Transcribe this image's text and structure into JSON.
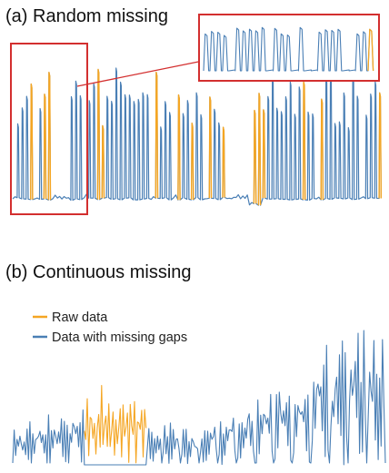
{
  "panels": {
    "a": {
      "title": "(a) Random missing"
    },
    "b": {
      "title": "(b) Continuous missing"
    }
  },
  "legend": {
    "raw_label": "Raw data",
    "gaps_label": "Data with missing gaps"
  },
  "colors": {
    "raw": "#f5a623",
    "gaps": "#4a7fb5",
    "highlight": "#d32f2f"
  },
  "chart_data": [
    {
      "type": "line",
      "title": "(a) Random missing",
      "series": [
        {
          "name": "Raw data",
          "color": "#f5a623"
        },
        {
          "name": "Data with missing gaps",
          "color": "#4a7fb5"
        }
      ],
      "peak_profile": [
        0,
        1,
        2,
        3,
        4,
        0,
        2,
        3,
        5,
        0,
        0,
        0,
        0,
        3,
        4,
        3,
        0,
        3,
        4,
        5,
        1,
        3,
        3,
        5,
        4,
        3,
        3,
        3,
        3,
        3,
        3,
        0,
        5,
        1,
        3,
        2,
        0,
        3,
        2,
        3,
        1,
        3,
        2,
        0,
        3,
        2,
        1,
        1,
        0,
        0,
        0,
        0,
        0,
        0,
        2,
        3,
        2,
        3,
        5,
        2,
        2,
        3,
        4,
        2,
        4,
        4,
        2,
        2,
        0,
        3,
        5,
        5,
        1,
        1,
        3,
        1,
        5,
        3,
        0,
        2,
        3,
        4,
        3
      ],
      "axes_visible": false,
      "zoom_inset": true
    },
    {
      "type": "line",
      "title": "(b) Continuous missing",
      "series": [
        {
          "name": "Raw data",
          "color": "#f5a623"
        },
        {
          "name": "Data with missing gaps",
          "color": "#4a7fb5"
        }
      ],
      "continuous_gap_range": [
        0.19,
        0.36
      ],
      "trend": "increasing amplitude",
      "axes_visible": false,
      "legend_position": "top-left"
    }
  ]
}
